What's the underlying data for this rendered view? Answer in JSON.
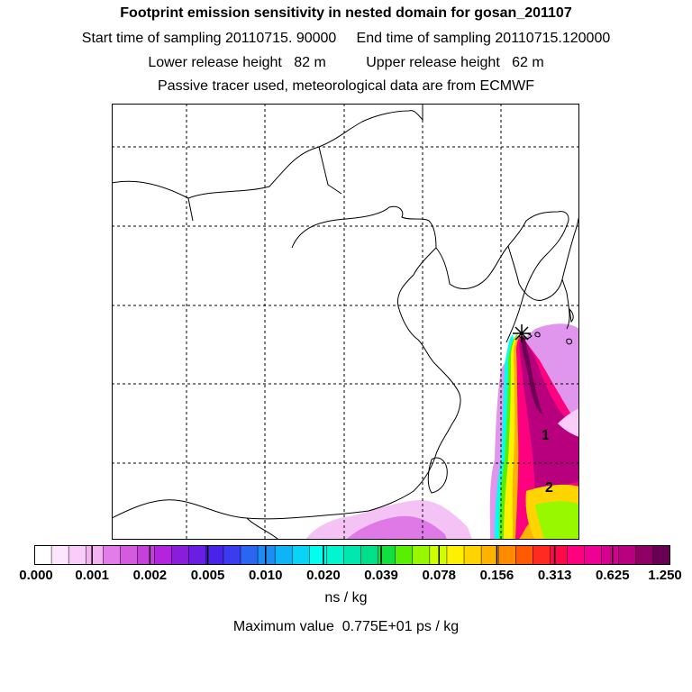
{
  "header": {
    "title": "Footprint emission sensitivity in nested domain for gosan_201107",
    "line2": "Start time of sampling 20110715. 90000     End time of sampling 20110715.120000",
    "line3": "Lower release height   82 m          Upper release height   62 m",
    "line4": "Passive tracer used, meteorological data are from ECMWF"
  },
  "map": {
    "site_marker": "star-marker",
    "labels": [
      {
        "id": "1",
        "text": "1"
      },
      {
        "id": "2",
        "text": "2"
      }
    ],
    "grid": "on",
    "colors": {
      "coastline": "#000000",
      "grid": "#000000"
    }
  },
  "colorbar": {
    "tick_labels": [
      "0.000",
      "0.001",
      "0.002",
      "0.005",
      "0.010",
      "0.020",
      "0.039",
      "0.078",
      "0.156",
      "0.313",
      "0.625",
      "1.250"
    ],
    "colors": [
      "#ffffff",
      "#fde6fd",
      "#f9ccf9",
      "#f3b3f3",
      "#e37ce8",
      "#d45ade",
      "#c43fdc",
      "#b325dc",
      "#8a1cdc",
      "#6a1ee3",
      "#4a23ea",
      "#3b3bf0",
      "#2a66f2",
      "#1a8ef5",
      "#0fb3f8",
      "#09d4f5",
      "#00ffee",
      "#00f5d0",
      "#00e8b0",
      "#00df8a",
      "#10e040",
      "#58f000",
      "#98f800",
      "#d2ff00",
      "#fff000",
      "#ffd400",
      "#ffb300",
      "#ff8c00",
      "#ff5a00",
      "#ff2a20",
      "#ff0a48",
      "#ff0080",
      "#ef0094",
      "#d6008f",
      "#b8007e",
      "#8f0067",
      "#6a0054"
    ],
    "units": "ns / kg"
  },
  "footer": {
    "max_value": "Maximum value  0.775E+01 ps / kg"
  }
}
